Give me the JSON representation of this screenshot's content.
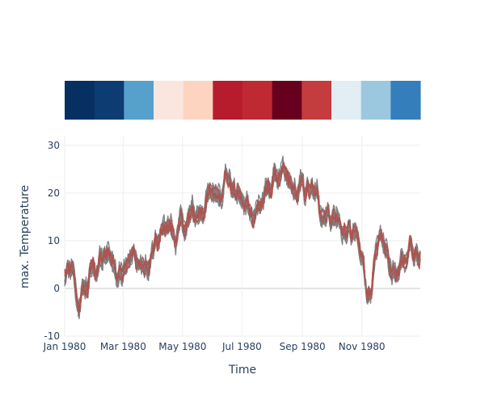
{
  "chart_data": [
    {
      "type": "heatmap",
      "description_colors": [
        "#053061",
        "#0d3c72",
        "#56a0cc",
        "#fbe6df",
        "#fdd4bf",
        "#b61c2c",
        "#bf2932",
        "#67001f",
        "#c43c3d",
        "#e2edf4",
        "#9bc8df",
        "#337ebb"
      ]
    },
    {
      "type": "line",
      "xlabel": "Time",
      "ylabel": "max. Temperature",
      "x_ticks": [
        "Jan 1980",
        "Mar 1980",
        "May 1980",
        "Jul 1980",
        "Sep 1980",
        "Nov 1980"
      ],
      "x_range": [
        "1980-01-01",
        "1980-12-31"
      ],
      "ylim": [
        -10,
        32
      ],
      "y_ticks": [
        -10,
        0,
        10,
        20,
        30
      ],
      "grid": true,
      "series_colors": [
        "#7f7f7f",
        "#b0524d"
      ],
      "anchors": [
        [
          "1980-01-01",
          2
        ],
        [
          "1980-01-08",
          3
        ],
        [
          "1980-01-15",
          -3
        ],
        [
          "1980-01-22",
          0
        ],
        [
          "1980-02-01",
          5
        ],
        [
          "1980-02-10",
          6
        ],
        [
          "1980-02-18",
          7
        ],
        [
          "1980-02-25",
          3
        ],
        [
          "1980-03-05",
          8
        ],
        [
          "1980-03-15",
          6
        ],
        [
          "1980-03-25",
          4
        ],
        [
          "1980-04-05",
          9
        ],
        [
          "1980-04-15",
          14
        ],
        [
          "1980-04-25",
          11
        ],
        [
          "1980-05-05",
          14
        ],
        [
          "1980-05-15",
          16
        ],
        [
          "1980-05-25",
          18
        ],
        [
          "1980-06-05",
          21
        ],
        [
          "1980-06-15",
          24
        ],
        [
          "1980-06-25",
          20
        ],
        [
          "1980-07-05",
          17
        ],
        [
          "1980-07-15",
          17
        ],
        [
          "1980-07-25",
          19
        ],
        [
          "1980-08-05",
          24
        ],
        [
          "1980-08-15",
          22
        ],
        [
          "1980-08-25",
          20
        ],
        [
          "1980-09-05",
          21
        ],
        [
          "1980-09-15",
          19
        ],
        [
          "1980-09-25",
          17
        ],
        [
          "1980-10-05",
          15
        ],
        [
          "1980-10-15",
          12
        ],
        [
          "1980-10-25",
          11
        ],
        [
          "1980-11-01",
          6
        ],
        [
          "1980-11-08",
          0
        ],
        [
          "1980-11-15",
          5
        ],
        [
          "1980-11-22",
          9
        ],
        [
          "1980-12-01",
          5
        ],
        [
          "1980-12-10",
          3
        ],
        [
          "1980-12-20",
          9
        ],
        [
          "1980-12-31",
          8
        ]
      ],
      "gray_series_count": 7,
      "red_series_count": 3
    }
  ]
}
